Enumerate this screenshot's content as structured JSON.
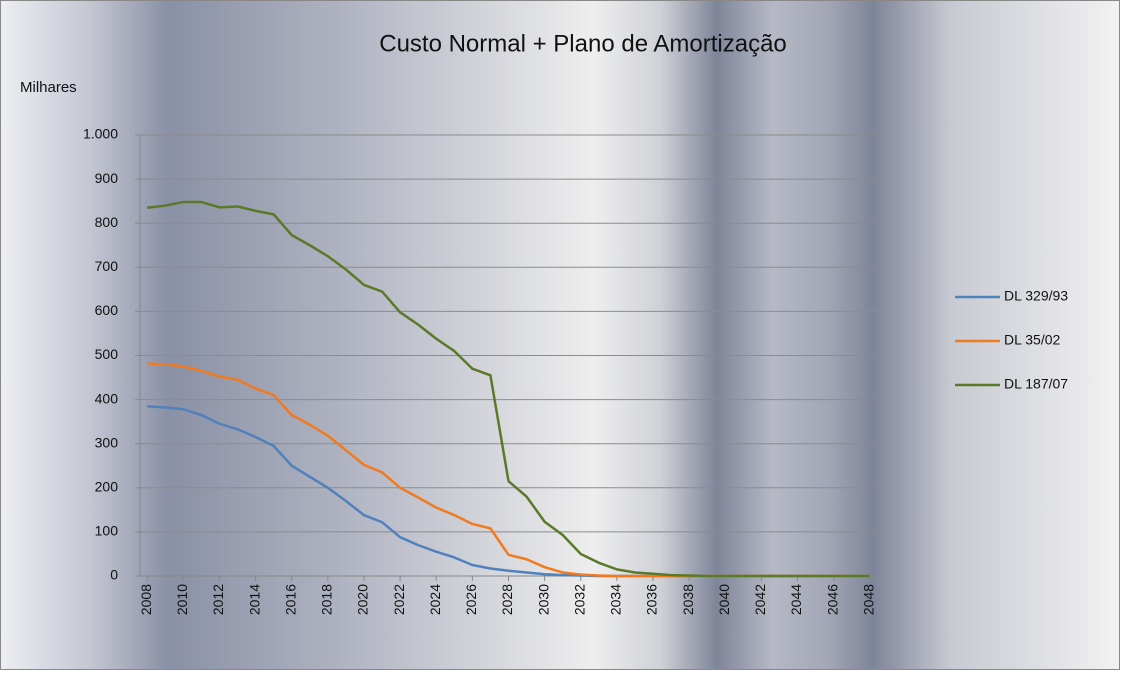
{
  "chart_data": {
    "type": "line",
    "title": "Custo Normal + Plano de Amortização",
    "ylabel": "Milhares",
    "x": [
      2008,
      2009,
      2010,
      2011,
      2012,
      2013,
      2014,
      2015,
      2016,
      2017,
      2018,
      2019,
      2020,
      2021,
      2022,
      2023,
      2024,
      2025,
      2026,
      2027,
      2028,
      2029,
      2030,
      2031,
      2032,
      2033,
      2034,
      2035,
      2036,
      2037,
      2038,
      2039,
      2040,
      2041,
      2042,
      2043,
      2044,
      2045,
      2046,
      2047,
      2048
    ],
    "series": [
      {
        "name": "DL 329/93",
        "color": "#4f81bd",
        "values": [
          385,
          382,
          378,
          365,
          345,
          333,
          315,
          295,
          250,
          225,
          200,
          170,
          138,
          122,
          88,
          70,
          55,
          42,
          25,
          17,
          12,
          8,
          4,
          2,
          1,
          0,
          0,
          0,
          0,
          0,
          0,
          0,
          0,
          0,
          0,
          0,
          0,
          0,
          0,
          0,
          0
        ]
      },
      {
        "name": "DL 35/02",
        "color": "#f07a1e",
        "values": [
          482,
          480,
          475,
          465,
          452,
          445,
          425,
          410,
          365,
          343,
          318,
          285,
          252,
          235,
          200,
          178,
          155,
          138,
          118,
          108,
          48,
          38,
          20,
          8,
          3,
          1,
          0,
          0,
          0,
          0,
          0,
          0,
          0,
          0,
          0,
          0,
          0,
          0,
          0,
          0,
          0
        ]
      },
      {
        "name": "DL 187/07",
        "color": "#5a7a2a",
        "values": [
          835,
          840,
          848,
          848,
          836,
          838,
          828,
          820,
          773,
          750,
          725,
          695,
          660,
          645,
          598,
          570,
          538,
          510,
          470,
          455,
          215,
          180,
          123,
          93,
          50,
          30,
          15,
          8,
          5,
          2,
          1,
          0,
          0,
          0,
          0,
          0,
          0,
          0,
          0,
          0,
          0
        ]
      }
    ],
    "xlim": [
      2007.6,
      2048.4
    ],
    "xticks": [
      2008,
      2010,
      2012,
      2014,
      2016,
      2018,
      2020,
      2022,
      2024,
      2026,
      2028,
      2030,
      2032,
      2034,
      2036,
      2038,
      2040,
      2042,
      2044,
      2046,
      2048
    ],
    "ylim": [
      0,
      1000
    ],
    "yticks": [
      0,
      100,
      200,
      300,
      400,
      500,
      600,
      700,
      800,
      900,
      {
        "value": 1000,
        "label": "1.000"
      }
    ],
    "grid": true,
    "legend": "right"
  }
}
